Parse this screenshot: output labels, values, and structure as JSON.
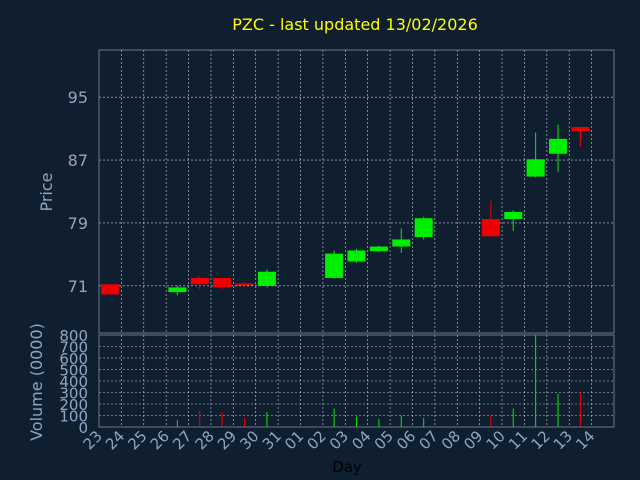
{
  "chart_data": {
    "type": "candlestick",
    "title": "PZC - last updated 13/02/2026",
    "xlabel": "Day",
    "ylabel": "Price",
    "volume_label": "Volume (0000)",
    "grid": true,
    "price_ylim": [
      65,
      101
    ],
    "price_ticks": [
      71,
      79,
      87,
      95
    ],
    "volume_ylim": [
      0,
      800
    ],
    "volume_ticks": [
      0,
      100,
      200,
      300,
      400,
      500,
      600,
      700,
      800
    ],
    "x_labels": [
      "23",
      "24",
      "25",
      "26",
      "27",
      "28",
      "29",
      "30",
      "31",
      "01",
      "02",
      "03",
      "04",
      "05",
      "06",
      "07",
      "08",
      "09",
      "10",
      "11",
      "12",
      "13",
      "14"
    ],
    "candles": [
      {
        "day": "23",
        "open": 71.2,
        "close": 69.9,
        "high": 71.2,
        "low": 69.9,
        "volume": 0
      },
      {
        "day": "26",
        "open": 70.2,
        "close": 70.8,
        "high": 71.0,
        "low": 69.8,
        "volume": 60
      },
      {
        "day": "27",
        "open": 72.0,
        "close": 71.2,
        "high": 72.2,
        "low": 70.6,
        "volume": 140
      },
      {
        "day": "28",
        "open": 72.0,
        "close": 70.8,
        "high": 72.0,
        "low": 70.6,
        "volume": 130
      },
      {
        "day": "29",
        "open": 71.3,
        "close": 71.1,
        "high": 71.4,
        "low": 70.9,
        "volume": 80
      },
      {
        "day": "30",
        "open": 71.0,
        "close": 72.8,
        "high": 73.1,
        "low": 70.8,
        "volume": 130
      },
      {
        "day": "02",
        "open": 72.0,
        "close": 75.1,
        "high": 75.5,
        "low": 71.9,
        "volume": 160
      },
      {
        "day": "03",
        "open": 74.1,
        "close": 75.5,
        "high": 75.7,
        "low": 73.9,
        "volume": 90
      },
      {
        "day": "04",
        "open": 75.4,
        "close": 76.0,
        "high": 76.1,
        "low": 75.3,
        "volume": 70
      },
      {
        "day": "05",
        "open": 76.0,
        "close": 76.9,
        "high": 78.3,
        "low": 75.2,
        "volume": 100
      },
      {
        "day": "06",
        "open": 77.2,
        "close": 79.6,
        "high": 79.8,
        "low": 76.9,
        "volume": 80
      },
      {
        "day": "09",
        "open": 79.5,
        "close": 77.3,
        "high": 81.8,
        "low": 77.3,
        "volume": 110
      },
      {
        "day": "10",
        "open": 79.5,
        "close": 80.4,
        "high": 80.6,
        "low": 78.0,
        "volume": 160
      },
      {
        "day": "11",
        "open": 84.9,
        "close": 87.1,
        "high": 90.5,
        "low": 84.8,
        "volume": 800
      },
      {
        "day": "12",
        "open": 87.8,
        "close": 89.7,
        "high": 91.5,
        "low": 85.5,
        "volume": 290
      },
      {
        "day": "13",
        "open": 91.2,
        "close": 90.7,
        "high": 91.2,
        "low": 88.7,
        "volume": 310
      }
    ],
    "colors": {
      "background": "#0f1f30",
      "plot_border": "#6a7a8a",
      "grid": "#c8d0d8",
      "up": "#00ee00",
      "down": "#ee0000",
      "title": "#ffff00",
      "axis_text": "#8fa6c2",
      "day_label": "#000000"
    }
  }
}
